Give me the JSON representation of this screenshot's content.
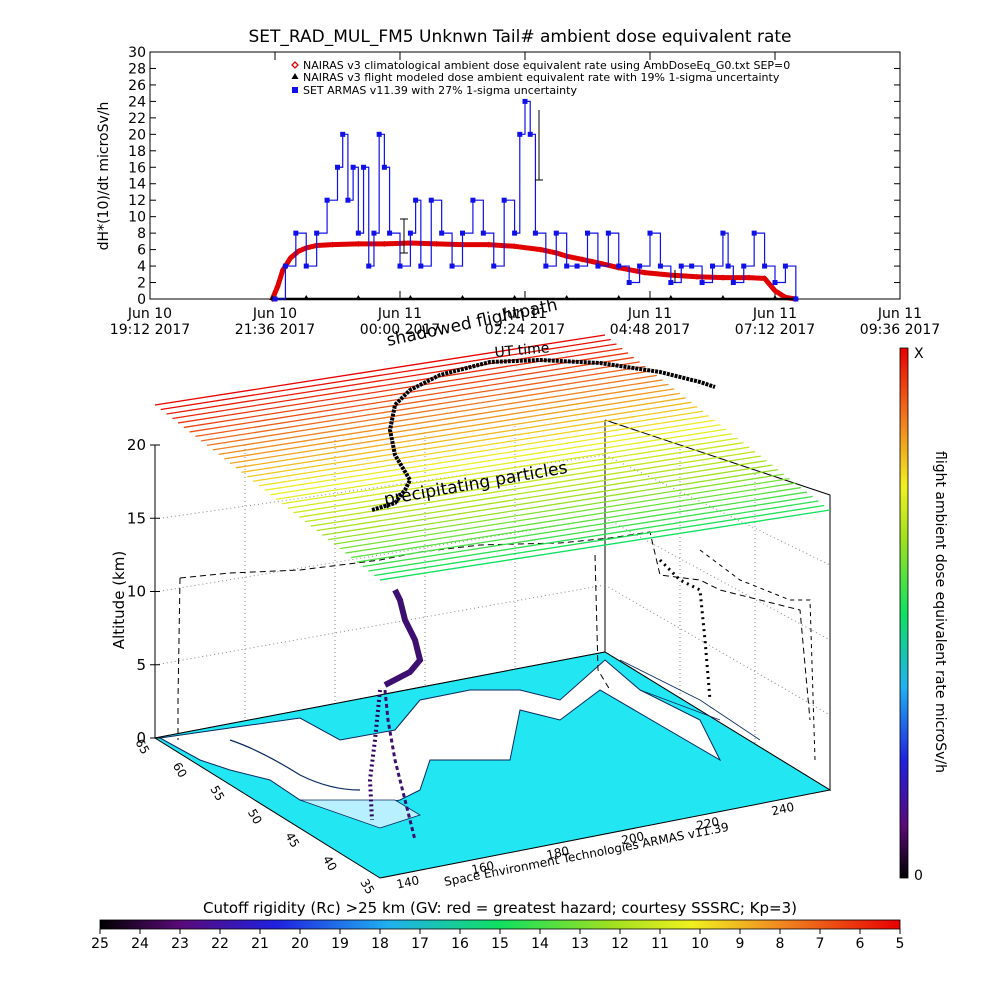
{
  "chart_data": [
    {
      "type": "scatter",
      "title": "SET_RAD_MUL_FM5 Unknwn Tail#  ambient dose equivalent rate",
      "ylabel": "dH*(10)/dt microSv/h",
      "ylim": [
        0,
        30
      ],
      "yticks": [
        "0",
        "2",
        "4",
        "6",
        "8",
        "10",
        "12",
        "14",
        "16",
        "18",
        "20",
        "22",
        "24",
        "26",
        "28",
        "30"
      ],
      "xlim_hours": [
        0,
        14.4
      ],
      "xticks": [
        {
          "l1": "Jun 10",
          "l2": "19:12 2017"
        },
        {
          "l1": "Jun 10",
          "l2": "21:36 2017"
        },
        {
          "l1": "Jun 11",
          "l2": "00:00 2017"
        },
        {
          "l1": "Jun 11",
          "l2": "02:24 2017"
        },
        {
          "l1": "Jun 11",
          "l2": "04:48 2017"
        },
        {
          "l1": "Jun 11",
          "l2": "07:12 2017"
        },
        {
          "l1": "Jun 11",
          "l2": "09:36 2017"
        }
      ],
      "legend": [
        {
          "marker": "diamond",
          "color": "#e00000",
          "label": "NAIRAS v3 climatological ambient dose equivalent rate using AmbDoseEq_G0.txt SEP=0"
        },
        {
          "marker": "triangle",
          "color": "#000000",
          "label": "NAIRAS v3 flight modeled dose ambient equivalent rate with 19% 1-sigma uncertainty"
        },
        {
          "marker": "dot",
          "color": "#1010e8",
          "label": "SET ARMAS v11.39 with 27% 1-sigma uncertainty"
        }
      ],
      "series": [
        {
          "name": "NAIRAS v3 climatological ambient dose equivalent rate using AmbDoseEq_G0.txt SEP=0",
          "color": "#e00000",
          "x": [
            2.35,
            2.45,
            2.55,
            2.7,
            2.85,
            3.0,
            3.2,
            3.5,
            4.0,
            4.5,
            5.0,
            5.5,
            6.0,
            6.5,
            7.0,
            7.5,
            7.8,
            8.0,
            8.3,
            8.6,
            9.0,
            9.5,
            10.0,
            10.5,
            11.0,
            11.5,
            11.8,
            12.0,
            12.2,
            12.4
          ],
          "y": [
            0,
            1.5,
            3.5,
            5.0,
            5.8,
            6.2,
            6.5,
            6.6,
            6.7,
            6.7,
            6.8,
            6.7,
            6.6,
            6.6,
            6.4,
            6.0,
            5.6,
            5.2,
            4.8,
            4.4,
            3.8,
            3.2,
            2.9,
            2.7,
            2.6,
            2.6,
            2.5,
            1.0,
            0.2,
            0
          ]
        },
        {
          "name": "NAIRAS v3 flight modeled dose ambient equivalent rate with 19% 1-sigma uncertainty",
          "color": "#000000",
          "x": [
            2.35,
            3.0,
            4.0,
            5.0,
            6.0,
            7.0,
            8.0,
            9.0,
            10.0,
            11.0,
            12.0,
            12.4
          ],
          "y": [
            0,
            0,
            0,
            0,
            0,
            0,
            0,
            0,
            0,
            0,
            0,
            0
          ]
        },
        {
          "name": "SET ARMAS v11.39 with 27% 1-sigma uncertainty",
          "color": "#1010e8",
          "x": [
            2.4,
            2.6,
            2.8,
            3.0,
            3.2,
            3.4,
            3.6,
            3.7,
            3.8,
            3.9,
            4.0,
            4.1,
            4.2,
            4.3,
            4.4,
            4.5,
            4.6,
            4.8,
            5.0,
            5.1,
            5.2,
            5.4,
            5.6,
            5.8,
            6.0,
            6.2,
            6.4,
            6.6,
            6.8,
            7.0,
            7.1,
            7.2,
            7.3,
            7.4,
            7.6,
            7.8,
            8.0,
            8.2,
            8.4,
            8.6,
            8.8,
            9.0,
            9.2,
            9.4,
            9.6,
            9.8,
            10.0,
            10.2,
            10.4,
            10.6,
            10.8,
            11.0,
            11.1,
            11.2,
            11.4,
            11.6,
            11.8,
            12.0,
            12.2,
            12.4
          ],
          "y": [
            0,
            4,
            8,
            4,
            8,
            12,
            16,
            20,
            12,
            16,
            8,
            16,
            4,
            8,
            20,
            16,
            8,
            4,
            8,
            12,
            4,
            12,
            8,
            4,
            8,
            12,
            8,
            4,
            12,
            8,
            20,
            24,
            20,
            8,
            4,
            8,
            4,
            4,
            8,
            4,
            8,
            4,
            2,
            4,
            8,
            4,
            2,
            4,
            4,
            2,
            4,
            8,
            4,
            2,
            4,
            8,
            4,
            2,
            4,
            0
          ]
        }
      ]
    },
    {
      "type": "3d-trajectory",
      "title_top": "shadowed flightpath",
      "subtitle_top": "UT time",
      "annotation": "precipitating particles",
      "zlabel": "Altitude (km)",
      "zlim": [
        0,
        20
      ],
      "zticks": [
        "0",
        "5",
        "10",
        "15",
        "20"
      ],
      "lon_ticks": [
        "140",
        "160",
        "180",
        "200",
        "220",
        "240"
      ],
      "lat_ticks": [
        "35",
        "40",
        "45",
        "50",
        "55",
        "60",
        "65"
      ],
      "credit": "Space Environment Technologies ARMAS v11.39",
      "colorbar_label": "flight ambient dose equivalent rate microSv/h",
      "colorbar_top": "X",
      "colorbar_bottom": "0"
    },
    {
      "type": "colorbar",
      "title": "Cutoff rigidity (Rc) >25 km (GV: red = greatest hazard; courtesy SSSRC; Kp=3)",
      "ticks": [
        "25",
        "24",
        "23",
        "22",
        "21",
        "20",
        "19",
        "18",
        "17",
        "16",
        "15",
        "14",
        "13",
        "12",
        "11",
        "10",
        "9",
        "8",
        "7",
        "6",
        "5"
      ]
    }
  ]
}
